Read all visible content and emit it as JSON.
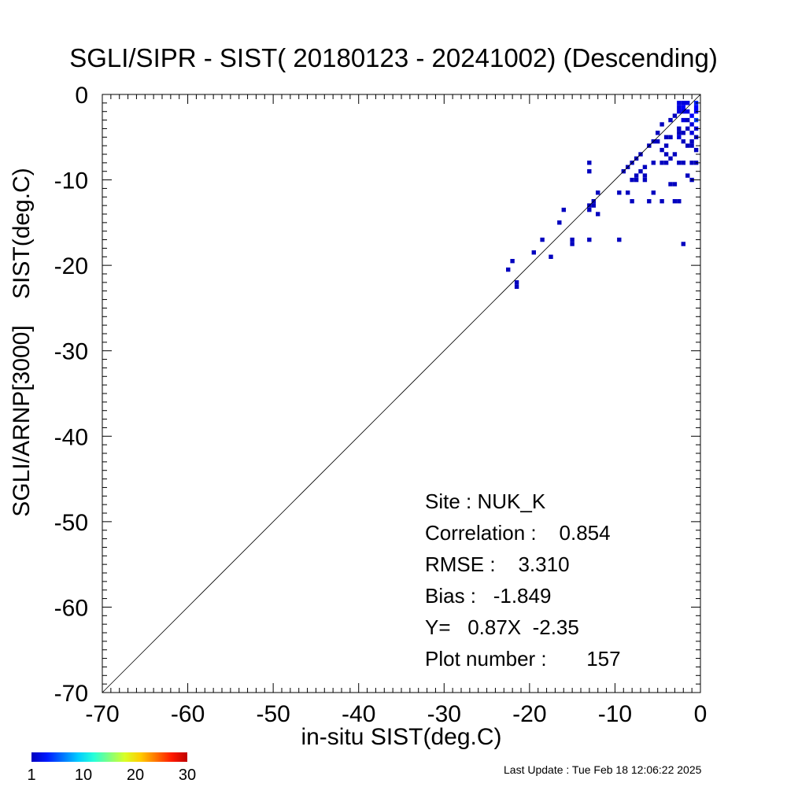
{
  "title": "SGLI/SIPR - SIST( 20180123 - 20241002) (Descending)",
  "stats": {
    "site": "Site : NUK_K",
    "correlation": "Correlation :    0.854",
    "rmse": "RMSE :    3.310",
    "bias": "Bias :   -1.849",
    "fit": "Y=   0.87X  -2.35",
    "plot_number": "Plot number :       157"
  },
  "colorbar": {
    "labels": [
      "1",
      "10",
      "20",
      "30"
    ],
    "range": [
      1,
      30
    ]
  },
  "last_update": "Last Update : Tue Feb 18 12:06:22 2025",
  "chart_data": {
    "type": "heatmap",
    "title": "SGLI/SIPR - SIST( 20180123 - 20241002) (Descending)",
    "xlabel": "in-situ SIST(deg.C)",
    "ylabel": "SGLI/ARNP[3000]    SIST(deg.C)",
    "xlim": [
      -70,
      0
    ],
    "ylim": [
      -70,
      0
    ],
    "xticks": [
      "-70",
      "-60",
      "-50",
      "-40",
      "-30",
      "-20",
      "-10",
      "0"
    ],
    "yticks": [
      "-70",
      "-60",
      "-50",
      "-40",
      "-30",
      "-20",
      "-10",
      "0"
    ],
    "one_to_one_line": true,
    "bin_size": 0.5,
    "colorscale": "jet",
    "count_range": [
      1,
      30
    ],
    "cells": [
      [
        -22.5,
        -20.5,
        1
      ],
      [
        -22,
        -19.5,
        1
      ],
      [
        -21.5,
        -22,
        1
      ],
      [
        -21.5,
        -22.5,
        1
      ],
      [
        -19.5,
        -18.5,
        1
      ],
      [
        -18.5,
        -17,
        1
      ],
      [
        -17.5,
        -19,
        1
      ],
      [
        -16.5,
        -15,
        1
      ],
      [
        -16,
        -13.5,
        1
      ],
      [
        -15,
        -17,
        1
      ],
      [
        -15,
        -17.5,
        1
      ],
      [
        -13,
        -13.5,
        1
      ],
      [
        -13,
        -13,
        1
      ],
      [
        -13,
        -17,
        1
      ],
      [
        -13,
        -8,
        1
      ],
      [
        -13,
        -9,
        1
      ],
      [
        -12.5,
        -13,
        1
      ],
      [
        -12.5,
        -12.5,
        1
      ],
      [
        -12,
        -11.5,
        1
      ],
      [
        -12,
        -14,
        1
      ],
      [
        -9.5,
        -11.5,
        1
      ],
      [
        -9.5,
        -17,
        1
      ],
      [
        -9,
        -9,
        1
      ],
      [
        -8.5,
        -8.5,
        1
      ],
      [
        -8.5,
        -11.5,
        1
      ],
      [
        -8,
        -10,
        1
      ],
      [
        -8,
        -8,
        1
      ],
      [
        -8,
        -12.5,
        1
      ],
      [
        -7.5,
        -9.5,
        1
      ],
      [
        -7.5,
        -10,
        1
      ],
      [
        -7.5,
        -7.5,
        1
      ],
      [
        -7,
        -9,
        1
      ],
      [
        -7,
        -7,
        1
      ],
      [
        -6.5,
        -10,
        1
      ],
      [
        -6.5,
        -8.5,
        1
      ],
      [
        -6,
        -12.5,
        1
      ],
      [
        -5.5,
        -11.5,
        1
      ],
      [
        -6,
        -6,
        1
      ],
      [
        -5.5,
        -5.5,
        1
      ],
      [
        -5.5,
        -8,
        1
      ],
      [
        -5,
        -4.5,
        1
      ],
      [
        -5,
        -5.5,
        1
      ],
      [
        -4.5,
        -3.5,
        1
      ],
      [
        -4.5,
        -6.5,
        1
      ],
      [
        -4.5,
        -12.5,
        1
      ],
      [
        -4,
        -5,
        1
      ],
      [
        -4,
        -6,
        1
      ],
      [
        -4,
        -7,
        1
      ],
      [
        -4,
        -8,
        1
      ],
      [
        -3.5,
        -3,
        1
      ],
      [
        -3.5,
        -7.5,
        1
      ],
      [
        -3.5,
        -10.5,
        1
      ],
      [
        -3,
        -2.5,
        1
      ],
      [
        -3,
        -7,
        1
      ],
      [
        -3,
        -10.5,
        1
      ],
      [
        -3,
        -12.5,
        1
      ],
      [
        -2.5,
        -1,
        2
      ],
      [
        -2.5,
        -2,
        2
      ],
      [
        -2.5,
        -4,
        1
      ],
      [
        -2.5,
        -4.5,
        1
      ],
      [
        -2.5,
        -5,
        2
      ],
      [
        -2.5,
        -8,
        1
      ],
      [
        -2.5,
        -12.5,
        1
      ],
      [
        -2,
        -1,
        2
      ],
      [
        -2,
        -1.5,
        3
      ],
      [
        -2,
        -3,
        2
      ],
      [
        -2,
        -4.5,
        1
      ],
      [
        -2,
        -5.5,
        1
      ],
      [
        -2,
        -8,
        1
      ],
      [
        -2,
        -17.5,
        1
      ],
      [
        -1.5,
        -2,
        2
      ],
      [
        -1.5,
        -3,
        1
      ],
      [
        -1.5,
        -4,
        1
      ],
      [
        -1.5,
        -6,
        1
      ],
      [
        -1.5,
        -9.5,
        1
      ],
      [
        -1,
        -2.5,
        3
      ],
      [
        -1,
        -3.5,
        2
      ],
      [
        -1,
        -4.5,
        2
      ],
      [
        -1,
        -5.5,
        1
      ],
      [
        -1,
        -8,
        1
      ],
      [
        -1,
        -10,
        1
      ],
      [
        -0.5,
        -1,
        4
      ],
      [
        -0.5,
        -2,
        3
      ],
      [
        -0.5,
        -3,
        5
      ],
      [
        -0.5,
        -4,
        2
      ],
      [
        -0.5,
        -5,
        1
      ],
      [
        -0.5,
        -6.5,
        1
      ],
      [
        -0.5,
        -8,
        1
      ],
      [
        -1.5,
        -1,
        2
      ],
      [
        -2,
        -2,
        2
      ],
      [
        -0.5,
        -1.5,
        3
      ],
      [
        -2.5,
        -1.5,
        2
      ],
      [
        -1,
        -6,
        1
      ],
      [
        -3.5,
        -5,
        1
      ],
      [
        -4.5,
        -8,
        1
      ],
      [
        -6.5,
        -9.5,
        1
      ]
    ]
  }
}
